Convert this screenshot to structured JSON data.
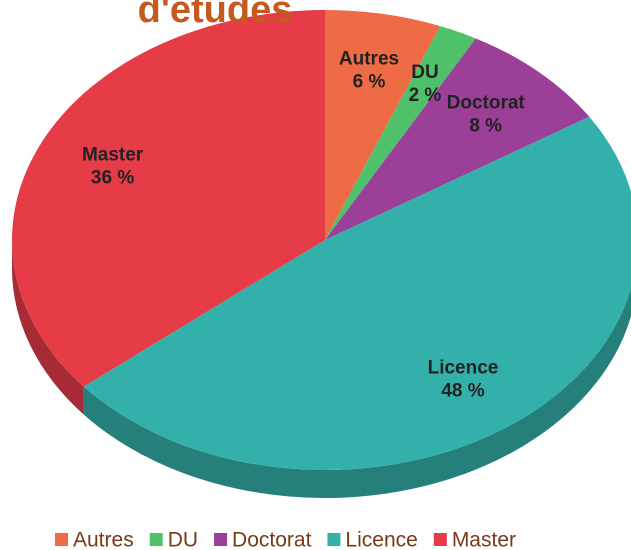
{
  "chart_data": {
    "type": "pie",
    "title": "d'études",
    "categories": [
      "Autres",
      "DU",
      "Doctorat",
      "Licence",
      "Master"
    ],
    "values": [
      6,
      2,
      8,
      48,
      36
    ],
    "value_labels": [
      "6 %",
      "2 %",
      "8 %",
      "48 %",
      "36 %"
    ],
    "colors": [
      "#ee6b45",
      "#4fc16b",
      "#9b3f98",
      "#33b0aa",
      "#e63c48"
    ],
    "legend": "bottom"
  }
}
